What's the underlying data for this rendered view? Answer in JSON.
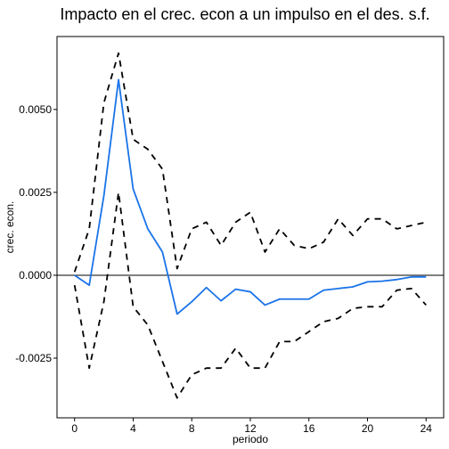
{
  "chart_data": {
    "type": "line",
    "title": "Impacto en el crec. econ a un impulso en el des. s.f.",
    "xlabel": "periodo",
    "ylabel": "crec. econ.",
    "xlim": [
      -1.2,
      25.2
    ],
    "ylim": [
      -0.0043,
      0.0072
    ],
    "x_ticks": [
      0,
      4,
      8,
      12,
      16,
      20,
      24
    ],
    "x_tick_labels": [
      "0",
      "4",
      "8",
      "12",
      "16",
      "20",
      "24"
    ],
    "y_ticks": [
      -0.0025,
      0.0,
      0.0025,
      0.005
    ],
    "y_tick_labels": [
      "-0.0025",
      "0.0000",
      "0.0025",
      "0.0050"
    ],
    "hline": 0,
    "grid": false,
    "legend": "none",
    "x": [
      0,
      1,
      2,
      3,
      4,
      5,
      6,
      7,
      8,
      9,
      10,
      11,
      12,
      13,
      14,
      15,
      16,
      17,
      18,
      19,
      20,
      21,
      22,
      23,
      24
    ],
    "series": [
      {
        "values": [
          0.0,
          -0.0003,
          0.0024,
          0.0059,
          0.0026,
          0.0014,
          0.0007,
          -0.00117,
          -0.0008,
          -0.00037,
          -0.00077,
          -0.00042,
          -0.0005,
          -0.0009,
          -0.00072,
          -0.00072,
          -0.00072,
          -0.00045,
          -0.0004,
          -0.00035,
          -0.0002,
          -0.00018,
          -0.00013,
          -5e-05,
          -5e-05
        ],
        "color": "#1a73e8",
        "style": "solid"
      },
      {
        "values": [
          0.0001,
          0.0014,
          0.0052,
          0.0067,
          0.0041,
          0.0038,
          0.0032,
          0.0002,
          0.0014,
          0.0016,
          0.0009,
          0.0016,
          0.0019,
          0.0007,
          0.0014,
          0.0009,
          0.0008,
          0.001,
          0.0017,
          0.0012,
          0.0017,
          0.0017,
          0.0014,
          0.0015,
          0.0016
        ],
        "color": "#000000",
        "style": "dashed"
      },
      {
        "values": [
          -0.0003,
          -0.0028,
          -0.0008,
          0.0025,
          -0.00095,
          -0.0015,
          -0.0026,
          -0.0037,
          -0.003,
          -0.0028,
          -0.0028,
          -0.0022,
          -0.0028,
          -0.0028,
          -0.002,
          -0.002,
          -0.0017,
          -0.0014,
          -0.0013,
          -0.001,
          -0.00095,
          -0.00095,
          -0.00045,
          -0.0004,
          -0.0009
        ],
        "color": "#000000",
        "style": "dashed"
      }
    ]
  }
}
